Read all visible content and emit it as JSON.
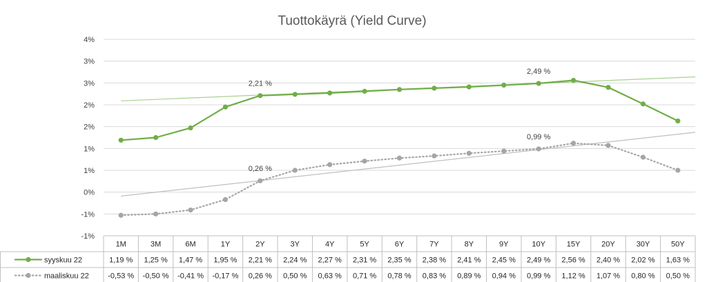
{
  "chart_data": {
    "type": "line",
    "title": "Tuottokäyrä (Yield Curve)",
    "y_tick_labels": [
      "4%",
      "3%",
      "3%",
      "2%",
      "2%",
      "1%",
      "1%",
      "0%",
      "-1%",
      "-1%"
    ],
    "ylim": [
      -1.0,
      3.5
    ],
    "categories": [
      "1M",
      "3M",
      "6M",
      "1Y",
      "2Y",
      "3Y",
      "4Y",
      "5Y",
      "6Y",
      "7Y",
      "8Y",
      "9Y",
      "10Y",
      "15Y",
      "20Y",
      "30Y",
      "50Y"
    ],
    "series": [
      {
        "name": "syyskuu 22",
        "color": "#70ad47",
        "line_style": "solid",
        "marker": "circle",
        "values": [
          1.19,
          1.25,
          1.47,
          1.95,
          2.21,
          2.24,
          2.27,
          2.31,
          2.35,
          2.38,
          2.41,
          2.45,
          2.49,
          2.56,
          2.4,
          2.02,
          1.63
        ],
        "value_labels": [
          "1,19 %",
          "1,25 %",
          "1,47 %",
          "1,95 %",
          "2,21 %",
          "2,24 %",
          "2,27 %",
          "2,31 %",
          "2,35 %",
          "2,38 %",
          "2,41 %",
          "2,45 %",
          "2,49 %",
          "2,56 %",
          "2,40 %",
          "2,02 %",
          "1,63 %"
        ],
        "trendline": {
          "color": "#a9d18e",
          "from": 2.09,
          "to": 2.64
        }
      },
      {
        "name": "maaliskuu 22",
        "color": "#a5a5a5",
        "line_style": "dotted",
        "marker": "circle",
        "values": [
          -0.53,
          -0.5,
          -0.41,
          -0.17,
          0.26,
          0.5,
          0.63,
          0.71,
          0.78,
          0.83,
          0.89,
          0.94,
          0.99,
          1.12,
          1.07,
          0.8,
          0.5
        ],
        "value_labels": [
          "-0,53 %",
          "-0,50 %",
          "-0,41 %",
          "-0,17 %",
          "0,26 %",
          "0,50 %",
          "0,63 %",
          "0,71 %",
          "0,78 %",
          "0,83 %",
          "0,89 %",
          "0,94 %",
          "0,99 %",
          "1,12 %",
          "1,07 %",
          "0,80 %",
          "0,50 %"
        ],
        "trendline": {
          "color": "#bfbfbf",
          "from": -0.09,
          "to": 1.37
        }
      }
    ],
    "data_labels": [
      {
        "series": 0,
        "index": 4,
        "text": "2,21 %"
      },
      {
        "series": 0,
        "index": 12,
        "text": "2,49 %"
      },
      {
        "series": 1,
        "index": 4,
        "text": "0,26 %"
      },
      {
        "series": 1,
        "index": 12,
        "text": "0,99 %"
      }
    ],
    "gridlines": true,
    "legend": "data-table"
  }
}
